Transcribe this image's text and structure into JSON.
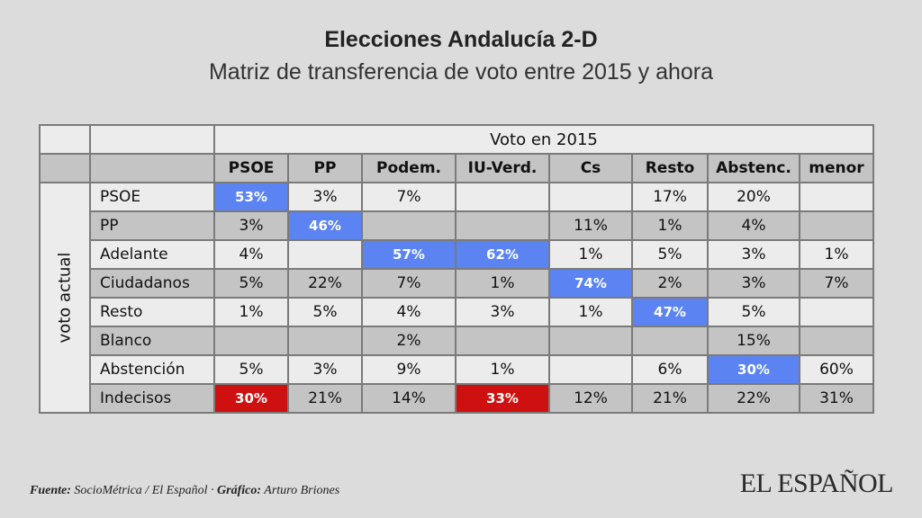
{
  "header": {
    "title": "Elecciones Andalucía 2-D",
    "subtitle": "Matriz de transferencia de voto entre 2015 y ahora"
  },
  "chart_data": {
    "type": "table",
    "column_group_label": "Voto en 2015",
    "row_group_label": "voto actual",
    "columns": [
      "PSOE",
      "PP",
      "Podem.",
      "IU-Verd.",
      "Cs",
      "Resto",
      "Abstenc.",
      "menor"
    ],
    "rows": [
      {
        "label": "PSOE",
        "values": [
          "53%",
          "3%",
          "7%",
          "",
          "",
          "17%",
          "20%",
          ""
        ],
        "highlight": [
          "blue",
          "",
          "",
          "",
          "",
          "",
          "",
          ""
        ]
      },
      {
        "label": "PP",
        "values": [
          "3%",
          "46%",
          "",
          "",
          "11%",
          "1%",
          "4%",
          ""
        ],
        "highlight": [
          "",
          "blue",
          "",
          "",
          "",
          "",
          "",
          ""
        ]
      },
      {
        "label": "Adelante",
        "values": [
          "4%",
          "",
          "57%",
          "62%",
          "1%",
          "5%",
          "3%",
          "1%"
        ],
        "highlight": [
          "",
          "",
          "blue",
          "blue",
          "",
          "",
          "",
          ""
        ]
      },
      {
        "label": "Ciudadanos",
        "values": [
          "5%",
          "22%",
          "7%",
          "1%",
          "74%",
          "2%",
          "3%",
          "7%"
        ],
        "highlight": [
          "",
          "",
          "",
          "",
          "blue",
          "",
          "",
          ""
        ]
      },
      {
        "label": "Resto",
        "values": [
          "1%",
          "5%",
          "4%",
          "3%",
          "1%",
          "47%",
          "5%",
          ""
        ],
        "highlight": [
          "",
          "",
          "",
          "",
          "",
          "blue",
          "",
          ""
        ]
      },
      {
        "label": "Blanco",
        "values": [
          "",
          "",
          "2%",
          "",
          "",
          "",
          "15%",
          ""
        ],
        "highlight": [
          "",
          "",
          "",
          "",
          "",
          "",
          "",
          ""
        ]
      },
      {
        "label": "Abstención",
        "values": [
          "5%",
          "3%",
          "9%",
          "1%",
          "",
          "6%",
          "30%",
          "60%"
        ],
        "highlight": [
          "",
          "",
          "",
          "",
          "",
          "",
          "blue",
          ""
        ]
      },
      {
        "label": "Indecisos",
        "values": [
          "30%",
          "21%",
          "14%",
          "33%",
          "12%",
          "21%",
          "22%",
          "31%"
        ],
        "highlight": [
          "red",
          "",
          "",
          "red",
          "",
          "",
          "",
          ""
        ]
      }
    ],
    "colors": {
      "highlight_blue": "#5b84f2",
      "highlight_red": "#cf1010",
      "row_light": "#ececec",
      "row_dark": "#c4c4c4"
    }
  },
  "footer": {
    "source_label": "Fuente:",
    "source_text": "SocioMétrica / El Español · ",
    "graphic_label": "Gráfico:",
    "graphic_text": "Arturo Briones"
  },
  "brand": {
    "logo_text": "EL ESPAÑOL"
  }
}
